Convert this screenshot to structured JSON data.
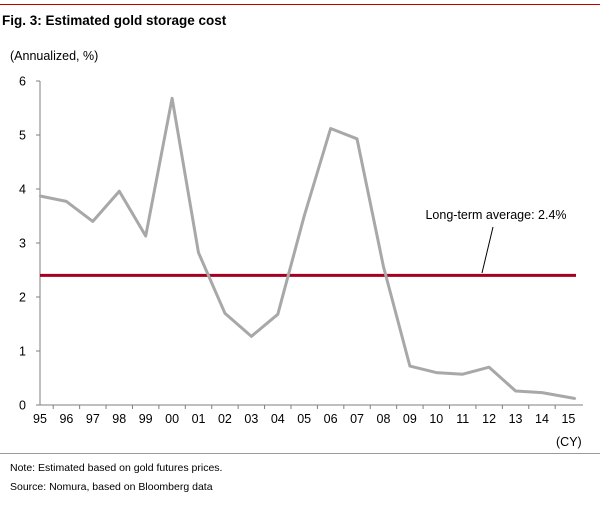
{
  "title": "Fig. 3: Estimated gold storage cost",
  "note": "Note: Estimated based on gold futures prices.",
  "source": "Source: Nomura, based on Bloomberg data",
  "colors": {
    "series": "#a8a8a8",
    "average": "#a50021",
    "rule": "#c00000",
    "axis": "#7f7f7f"
  },
  "chart_data": {
    "type": "line",
    "title": "Fig. 3: Estimated gold storage cost",
    "ylabel": "(Annualized, %)",
    "xlabel": "(CY)",
    "ylim": [
      0,
      6
    ],
    "yticks": [
      "0",
      "1",
      "2",
      "3",
      "4",
      "5",
      "6"
    ],
    "categories": [
      "95",
      "96",
      "97",
      "98",
      "99",
      "00",
      "01",
      "02",
      "03",
      "04",
      "05",
      "06",
      "07",
      "08",
      "09",
      "10",
      "11",
      "12",
      "13",
      "14",
      "15"
    ],
    "series": [
      {
        "x": [
          95,
          96,
          97,
          98,
          99,
          100,
          101,
          102,
          103,
          104,
          105,
          106,
          107,
          108,
          109,
          110,
          111,
          112,
          113,
          114,
          115.25
        ],
        "values": [
          3.87,
          3.77,
          3.4,
          3.96,
          3.13,
          5.68,
          2.82,
          1.7,
          1.27,
          1.68,
          3.5,
          5.12,
          4.93,
          2.56,
          0.72,
          0.6,
          0.57,
          0.7,
          0.26,
          0.23,
          0.12
        ]
      }
    ],
    "reference_line": {
      "value": 2.4,
      "label": "Long-term average: 2.4%"
    },
    "grid": false,
    "legend": "none"
  }
}
